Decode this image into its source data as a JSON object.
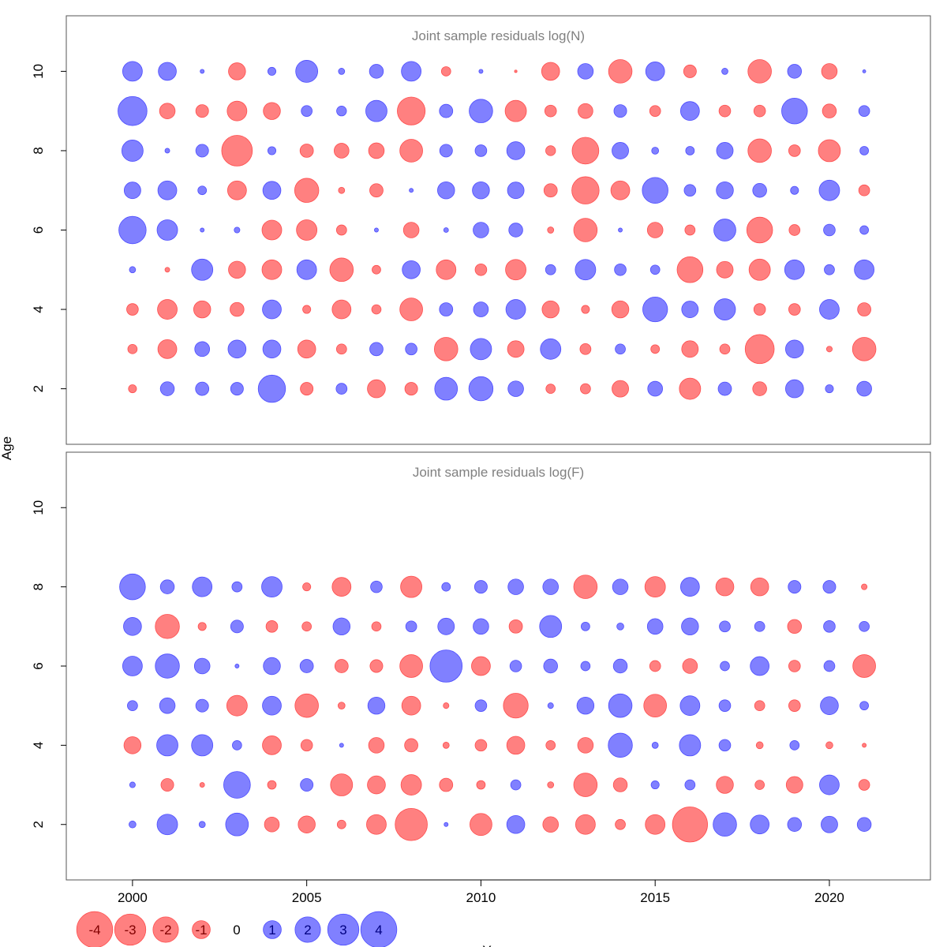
{
  "chart_data": [
    {
      "type": "scatter",
      "subtype": "bubble",
      "title": "Joint sample residuals log(N)",
      "xlim": [
        1998.1,
        2022.9
      ],
      "ylim": [
        0.6,
        11.4
      ],
      "yticks": [
        2,
        4,
        6,
        8,
        10
      ],
      "years": [
        2000,
        2001,
        2002,
        2003,
        2004,
        2005,
        2006,
        2007,
        2008,
        2009,
        2010,
        2011,
        2012,
        2013,
        2014,
        2015,
        2016,
        2017,
        2018,
        2019,
        2020,
        2021
      ],
      "ages": [
        10,
        9,
        8,
        7,
        6,
        5,
        4,
        3,
        2
      ],
      "residuals": [
        [
          1.2,
          1.0,
          0.05,
          -0.9,
          0.2,
          1.5,
          0.12,
          0.6,
          1.2,
          -0.27,
          0.05,
          -0.02,
          -1.0,
          0.75,
          -1.7,
          1.1,
          -0.5,
          0.12,
          -1.7,
          0.6,
          -0.75,
          0.03
        ],
        [
          2.6,
          -0.75,
          -0.5,
          -1.2,
          -0.9,
          0.37,
          0.3,
          1.4,
          -2.4,
          0.55,
          1.7,
          -1.4,
          -0.42,
          -0.68,
          0.5,
          -0.37,
          1.1,
          -0.42,
          -0.42,
          2.05,
          -0.6,
          0.37
        ],
        [
          1.4,
          0.07,
          0.5,
          -2.9,
          0.2,
          -0.55,
          -0.68,
          -0.75,
          -1.6,
          0.5,
          0.42,
          1.0,
          -0.3,
          -2.2,
          0.85,
          0.15,
          0.23,
          0.85,
          -1.7,
          -0.42,
          -1.5,
          0.23
        ],
        [
          0.85,
          1.1,
          0.23,
          -1.1,
          1.0,
          -1.8,
          -0.12,
          -0.55,
          0.05,
          0.9,
          0.9,
          0.85,
          -0.55,
          -2.3,
          -1.1,
          2.05,
          0.42,
          0.9,
          0.6,
          0.2,
          1.3,
          -0.37
        ],
        [
          2.3,
          1.3,
          0.05,
          0.1,
          -1.2,
          -1.3,
          -0.32,
          0.05,
          -0.75,
          0.07,
          0.75,
          0.6,
          -0.12,
          -1.7,
          0.05,
          -0.75,
          -0.32,
          1.5,
          -2.05,
          -0.37,
          0.42,
          0.23
        ],
        [
          0.12,
          -0.07,
          1.4,
          -0.9,
          -1.2,
          1.2,
          -1.7,
          -0.23,
          1.0,
          -1.2,
          -0.42,
          -1.3,
          0.32,
          1.3,
          0.42,
          0.27,
          -2.05,
          -0.85,
          -1.4,
          1.2,
          0.32,
          1.2
        ],
        [
          -0.42,
          -1.2,
          -0.9,
          -0.6,
          1.1,
          -0.2,
          -1.1,
          -0.27,
          -1.6,
          0.55,
          0.68,
          1.2,
          -0.9,
          -0.2,
          -0.9,
          1.9,
          0.85,
          1.4,
          -0.42,
          -0.42,
          1.2,
          -0.55
        ],
        [
          -0.27,
          -1.1,
          0.68,
          1.0,
          1.0,
          -1.0,
          -0.32,
          0.55,
          0.42,
          -1.7,
          1.4,
          -0.85,
          1.3,
          -0.37,
          0.32,
          -0.23,
          -0.85,
          -0.32,
          -2.6,
          1.0,
          -0.1,
          -1.7
        ],
        [
          -0.2,
          0.6,
          0.55,
          0.5,
          2.3,
          -0.5,
          0.37,
          -1.0,
          -0.5,
          1.6,
          1.8,
          0.75,
          -0.27,
          -0.32,
          -0.85,
          0.68,
          -1.4,
          0.55,
          -0.6,
          1.0,
          0.2,
          0.68
        ]
      ]
    },
    {
      "type": "scatter",
      "subtype": "bubble",
      "title": "Joint sample residuals log(F)",
      "xlim": [
        1998.1,
        2022.9
      ],
      "ylim": [
        0.6,
        11.4
      ],
      "yticks": [
        2,
        4,
        6,
        8,
        10
      ],
      "xticks": [
        2000,
        2005,
        2010,
        2015,
        2020
      ],
      "years": [
        2000,
        2001,
        2002,
        2003,
        2004,
        2005,
        2006,
        2007,
        2008,
        2009,
        2010,
        2011,
        2012,
        2013,
        2014,
        2015,
        2016,
        2017,
        2018,
        2019,
        2020,
        2021
      ],
      "ages": [
        8,
        7,
        6,
        5,
        4,
        3,
        2
      ],
      "residuals": [
        [
          2.05,
          0.6,
          1.2,
          0.32,
          1.3,
          -0.2,
          -1.1,
          0.42,
          -1.4,
          0.23,
          0.5,
          0.75,
          0.75,
          -1.7,
          0.75,
          -1.3,
          1.1,
          -1.0,
          -1.0,
          0.5,
          0.5,
          -0.1
        ],
        [
          1.0,
          -1.8,
          -0.2,
          0.5,
          -0.42,
          -0.27,
          0.9,
          -0.27,
          0.37,
          0.85,
          0.75,
          -0.55,
          1.5,
          0.23,
          0.15,
          0.75,
          0.9,
          0.37,
          0.32,
          -0.6,
          0.42,
          0.32
        ],
        [
          1.2,
          1.8,
          0.75,
          0.05,
          0.9,
          0.55,
          -0.55,
          -0.5,
          -1.6,
          3.2,
          -1.1,
          0.42,
          0.6,
          0.27,
          0.6,
          -0.37,
          -0.68,
          0.27,
          1.1,
          -0.42,
          0.37,
          -1.6
        ],
        [
          0.32,
          0.75,
          0.5,
          -1.3,
          1.1,
          -1.7,
          -0.15,
          0.9,
          -1.1,
          -0.1,
          0.42,
          -1.9,
          0.1,
          0.9,
          1.7,
          -1.6,
          1.2,
          0.42,
          -0.32,
          -0.42,
          1.0,
          0.23
        ],
        [
          -0.9,
          1.4,
          1.4,
          0.27,
          -1.1,
          -0.42,
          0.05,
          -0.75,
          -0.55,
          -0.12,
          -0.42,
          -1.0,
          -0.27,
          -0.75,
          1.8,
          0.12,
          1.4,
          0.42,
          -0.15,
          0.27,
          -0.15,
          -0.05
        ],
        [
          0.1,
          -0.5,
          -0.07,
          2.2,
          -0.23,
          0.5,
          -1.5,
          -1.0,
          -1.3,
          -0.55,
          -0.23,
          0.32,
          -0.12,
          -1.7,
          -0.6,
          0.2,
          0.32,
          -0.9,
          -0.27,
          -0.85,
          1.2,
          -0.37
        ],
        [
          0.15,
          1.3,
          0.12,
          1.6,
          -0.68,
          -0.9,
          -0.23,
          -1.2,
          -3.2,
          0.05,
          -1.5,
          1.0,
          -0.75,
          -1.2,
          -0.32,
          -1.2,
          -3.8,
          1.7,
          1.1,
          0.6,
          0.85,
          0.6
        ]
      ]
    }
  ],
  "axes": {
    "ylabel": "Age",
    "xlabel": "Y"
  },
  "legend": {
    "values": [
      -4,
      -3,
      -2,
      -1,
      0,
      1,
      2,
      3,
      4
    ],
    "labels": [
      "-4",
      "-3",
      "-2",
      "-1",
      "0",
      "1",
      "2",
      "3",
      "4"
    ]
  },
  "colors": {
    "negative_fill": "#ff8080",
    "negative_stroke": "#ff4d4d",
    "positive_fill": "#8080ff",
    "positive_stroke": "#4d4dff",
    "negative_label": "#800000",
    "positive_label": "#000080",
    "title": "#808080"
  }
}
